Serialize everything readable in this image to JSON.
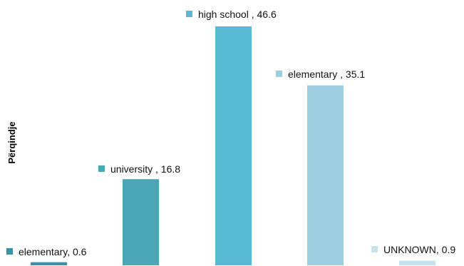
{
  "chart_data": {
    "type": "bar",
    "ylabel": "Përqindje",
    "ylim": [
      0,
      50
    ],
    "grid": false,
    "legend": "none",
    "bars": [
      {
        "category": "elementary",
        "value": 0.6,
        "label": "elementary, 0.6",
        "color": "#3f8fa6"
      },
      {
        "category": "university",
        "value": 16.8,
        "label": "university , 16.8",
        "color": "#4ba6b8"
      },
      {
        "category": "high school",
        "value": 46.6,
        "label": "high school , 46.6",
        "color": "#58bad3"
      },
      {
        "category": "elementary",
        "value": 35.1,
        "label": "elementary , 35.1",
        "color": "#9ecfe0"
      },
      {
        "category": "UNKNOWN",
        "value": 0.9,
        "label": "UNKNOWN, 0.9",
        "color": "#c5e3ef"
      }
    ]
  }
}
